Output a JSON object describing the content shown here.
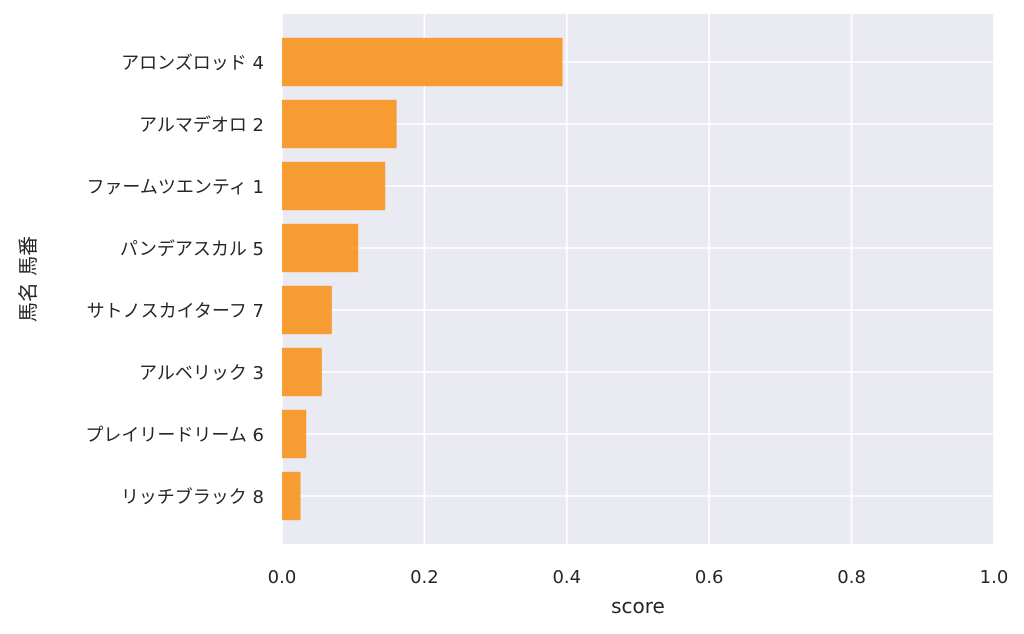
{
  "chart_data": {
    "type": "bar",
    "orientation": "horizontal",
    "categories": [
      "アロンズロッド 4",
      "アルマデオロ 2",
      "ファームツエンティ 1",
      "パンデアスカル 5",
      "サトノスカイターフ 7",
      "アルベリック 3",
      "プレイリードリーム 6",
      "リッチブラック 8"
    ],
    "values": [
      0.394,
      0.161,
      0.145,
      0.107,
      0.07,
      0.056,
      0.034,
      0.026
    ],
    "xlabel": "score",
    "ylabel": "馬名 馬番",
    "xlim": [
      0,
      1.0
    ],
    "xticks": [
      "0.0",
      "0.2",
      "0.4",
      "0.6",
      "0.8",
      "1.0"
    ],
    "grid": true,
    "colors": {
      "bar": "#f7941d",
      "background": "#eaeaf2",
      "grid": "#ffffff",
      "text": "#262626"
    }
  }
}
